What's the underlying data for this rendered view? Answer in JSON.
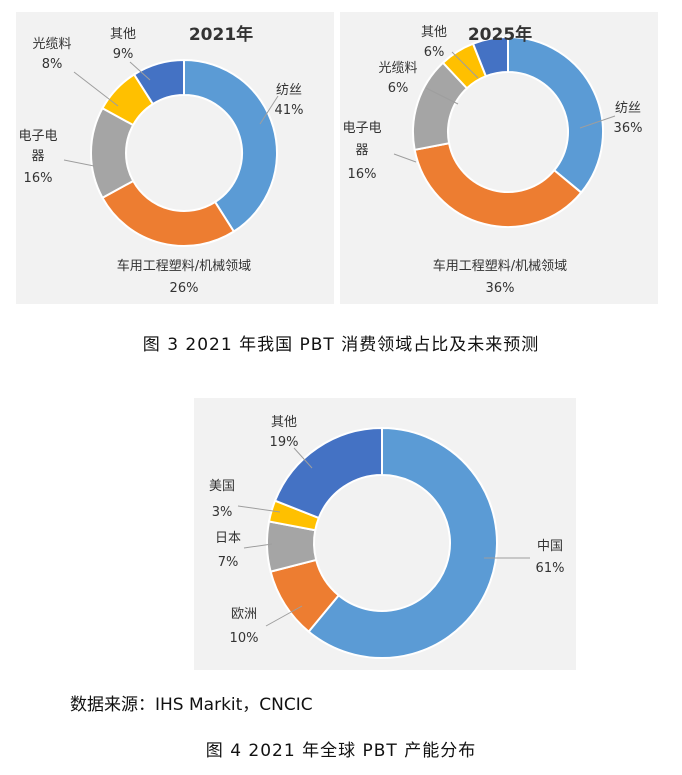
{
  "chart_data": [
    {
      "type": "pie",
      "title": "2021年",
      "slices": [
        {
          "name": "纺丝",
          "value": 41,
          "label": "41%",
          "color": "#5b9bd5"
        },
        {
          "name": "车用工程塑料/机械领域",
          "value": 26,
          "label": "26%",
          "color": "#ed7d31"
        },
        {
          "name": "电子电器",
          "value": 16,
          "label": "16%",
          "color": "#a5a5a5"
        },
        {
          "name": "光缆料",
          "value": 8,
          "label": "8%",
          "color": "#ffc000"
        },
        {
          "name": "其他",
          "value": 9,
          "label": "9%",
          "color": "#4472c4"
        }
      ]
    },
    {
      "type": "pie",
      "title": "2025年",
      "slices": [
        {
          "name": "纺丝",
          "value": 36,
          "label": "36%",
          "color": "#5b9bd5"
        },
        {
          "name": "车用工程塑料/机械领域",
          "value": 36,
          "label": "36%",
          "color": "#ed7d31"
        },
        {
          "name": "电子电器",
          "value": 16,
          "label": "16%",
          "color": "#a5a5a5"
        },
        {
          "name": "光缆料",
          "value": 6,
          "label": "6%",
          "color": "#ffc000"
        },
        {
          "name": "其他",
          "value": 6,
          "label": "6%",
          "color": "#4472c4"
        }
      ]
    },
    {
      "type": "pie",
      "title": "",
      "slices": [
        {
          "name": "中国",
          "value": 61,
          "label": "61%",
          "color": "#5b9bd5"
        },
        {
          "name": "欧洲",
          "value": 10,
          "label": "10%",
          "color": "#ed7d31"
        },
        {
          "name": "日本",
          "value": 7,
          "label": "7%",
          "color": "#a5a5a5"
        },
        {
          "name": "美国",
          "value": 3,
          "label": "3%",
          "color": "#ffc000"
        },
        {
          "name": "其他",
          "value": 19,
          "label": "19%",
          "color": "#4472c4"
        }
      ]
    }
  ],
  "captions": {
    "fig3": "图 3  2021 年我国 PBT 消费领域占比及未来预测",
    "source": "数据来源：IHS Markit，CNCIC",
    "fig4": "图 4  2021 年全球 PBT 产能分布"
  }
}
